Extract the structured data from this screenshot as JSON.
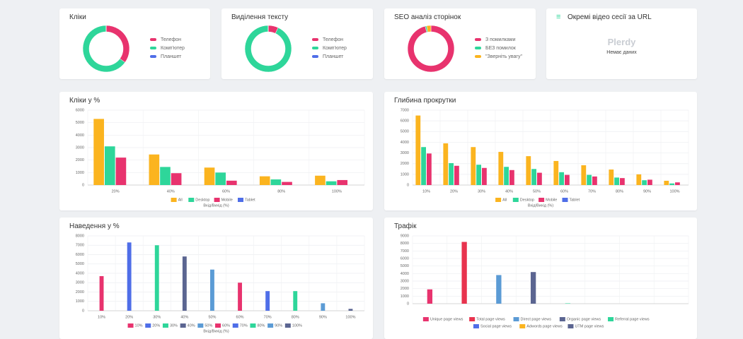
{
  "chart_data": [
    {
      "type": "donut",
      "title": "Кліки",
      "categories": [
        "Телефон",
        "Комп'ютер",
        "Планшет"
      ],
      "values": [
        35,
        65,
        0
      ],
      "colors": [
        "#e8336e",
        "#2ed69a",
        "#4f6ee8"
      ]
    },
    {
      "type": "donut",
      "title": "Виділення тексту",
      "categories": [
        "Телефон",
        "Комп'ютер",
        "Планшет"
      ],
      "values": [
        7,
        93,
        0
      ],
      "colors": [
        "#e8336e",
        "#2ed69a",
        "#4f6ee8"
      ]
    },
    {
      "type": "donut",
      "title": "SEO аналіз сторінок",
      "categories": [
        "З помилками",
        "БЕЗ помилок",
        "\"Зверніть увагу\""
      ],
      "values": [
        96,
        1,
        3
      ],
      "colors": [
        "#e8336e",
        "#2ed69a",
        "#fbb41f"
      ]
    },
    {
      "type": "bar",
      "title": "Кліки у %",
      "x_label": "Вхід/Вихід (%)",
      "categories": [
        "20%",
        "40%",
        "60%",
        "80%",
        "100%"
      ],
      "series": [
        {
          "name": "All",
          "color": "#fbb41f",
          "values": [
            5300,
            2450,
            1400,
            700,
            750
          ]
        },
        {
          "name": "Desktop",
          "color": "#2ed69a",
          "values": [
            3100,
            1450,
            1000,
            450,
            300
          ]
        },
        {
          "name": "Mobile",
          "color": "#e8336e",
          "values": [
            2200,
            950,
            350,
            250,
            400
          ]
        },
        {
          "name": "Tablet",
          "color": "#4f6ee8",
          "values": [
            0,
            0,
            0,
            0,
            0
          ]
        }
      ],
      "ylim": [
        0,
        6000
      ],
      "yticks": [
        0,
        1000,
        2000,
        3000,
        4000,
        5000,
        6000
      ],
      "grid": true
    },
    {
      "type": "bar",
      "title": "Глибина прокрутки",
      "x_label": "Вхід/Вихід (%)",
      "categories": [
        "10%",
        "20%",
        "30%",
        "40%",
        "50%",
        "60%",
        "70%",
        "80%",
        "90%",
        "100%"
      ],
      "series": [
        {
          "name": "All",
          "color": "#fbb41f",
          "values": [
            6500,
            3900,
            3550,
            3100,
            2700,
            2250,
            1850,
            1450,
            1000,
            400
          ]
        },
        {
          "name": "Desktop",
          "color": "#2ed69a",
          "values": [
            3550,
            2050,
            1900,
            1700,
            1500,
            1200,
            950,
            700,
            450,
            150
          ]
        },
        {
          "name": "Mobile",
          "color": "#e8336e",
          "values": [
            2950,
            1800,
            1600,
            1400,
            1150,
            950,
            800,
            650,
            500,
            250
          ]
        },
        {
          "name": "Tablet",
          "color": "#4f6ee8",
          "values": [
            0,
            0,
            0,
            0,
            0,
            0,
            0,
            0,
            0,
            0
          ]
        }
      ],
      "ylim": [
        0,
        7000
      ],
      "yticks": [
        0,
        1000,
        2000,
        3000,
        4000,
        5000,
        6000,
        7000
      ],
      "grid": true
    },
    {
      "type": "bar",
      "title": "Наведення у %",
      "x_label": "Вхід/Вихід (%)",
      "categories": [
        "10%",
        "20%",
        "30%",
        "40%",
        "50%",
        "60%",
        "70%",
        "80%",
        "90%",
        "100%"
      ],
      "values": [
        3700,
        7300,
        7000,
        5800,
        4400,
        3000,
        2100,
        2100,
        800,
        200
      ],
      "colors": [
        "#e8336e",
        "#4f6ee8",
        "#2ed69a",
        "#5b6591",
        "#5b9bd5",
        "#e8336e",
        "#4f6ee8",
        "#2ed69a",
        "#5b9bd5",
        "#5b6591"
      ],
      "ylim": [
        0,
        8000
      ],
      "yticks": [
        0,
        1000,
        2000,
        3000,
        4000,
        5000,
        6000,
        7000,
        8000
      ],
      "grid": true
    },
    {
      "type": "bar",
      "title": "Трафік",
      "categories": [
        "Unique page views",
        "Total page views",
        "Direct page views",
        "Organic page views",
        "Referral page views",
        "Social page views",
        "Adwords page views",
        "UTM page views"
      ],
      "values": [
        1900,
        8200,
        3800,
        4200,
        50,
        0,
        0,
        0
      ],
      "colors": [
        "#e8336e",
        "#e8334e",
        "#5b9bd5",
        "#5b6591",
        "#2ed69a",
        "#4f6ee8",
        "#fbb41f",
        "#5b6591"
      ],
      "ylim": [
        0,
        9000
      ],
      "yticks": [
        0,
        1000,
        2000,
        3000,
        4000,
        5000,
        6000,
        7000,
        8000,
        9000
      ],
      "grid": true,
      "legend_only": true
    }
  ],
  "video_card": {
    "title": "Окремі відео сесії за URL",
    "logo": "Plerdy",
    "empty_text": "Немає даних"
  }
}
